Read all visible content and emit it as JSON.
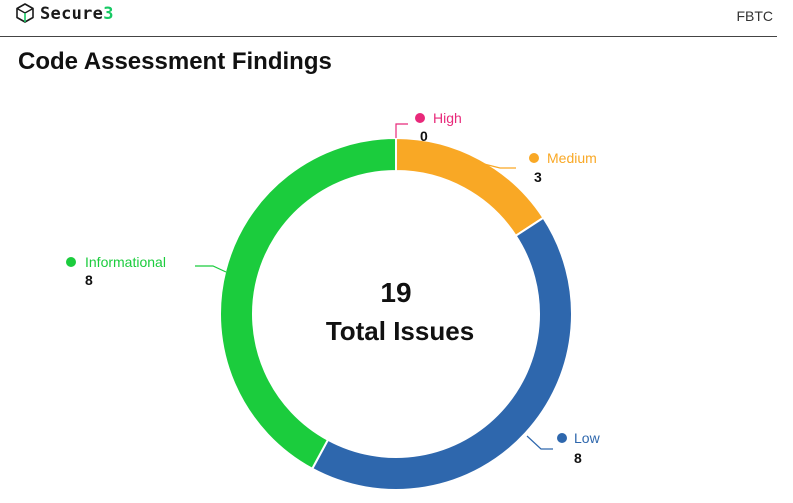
{
  "header": {
    "brand_main": "Secure",
    "brand_accent": "3",
    "project": "FBTC"
  },
  "page_title": "Code Assessment Findings",
  "colors": {
    "high": "#e8297a",
    "medium": "#f9a825",
    "low": "#2e67ad",
    "informational": "#1bcc3d",
    "brand_accent": "#17c964"
  },
  "chart_data": {
    "type": "pie",
    "style": "donut",
    "total": 19,
    "center_label": "Total Issues",
    "series": [
      {
        "name": "High",
        "value": 0,
        "color": "#e8297a"
      },
      {
        "name": "Medium",
        "value": 3,
        "color": "#f9a825"
      },
      {
        "name": "Low",
        "value": 8,
        "color": "#2e67ad"
      },
      {
        "name": "Informational",
        "value": 8,
        "color": "#1bcc3d"
      }
    ]
  }
}
